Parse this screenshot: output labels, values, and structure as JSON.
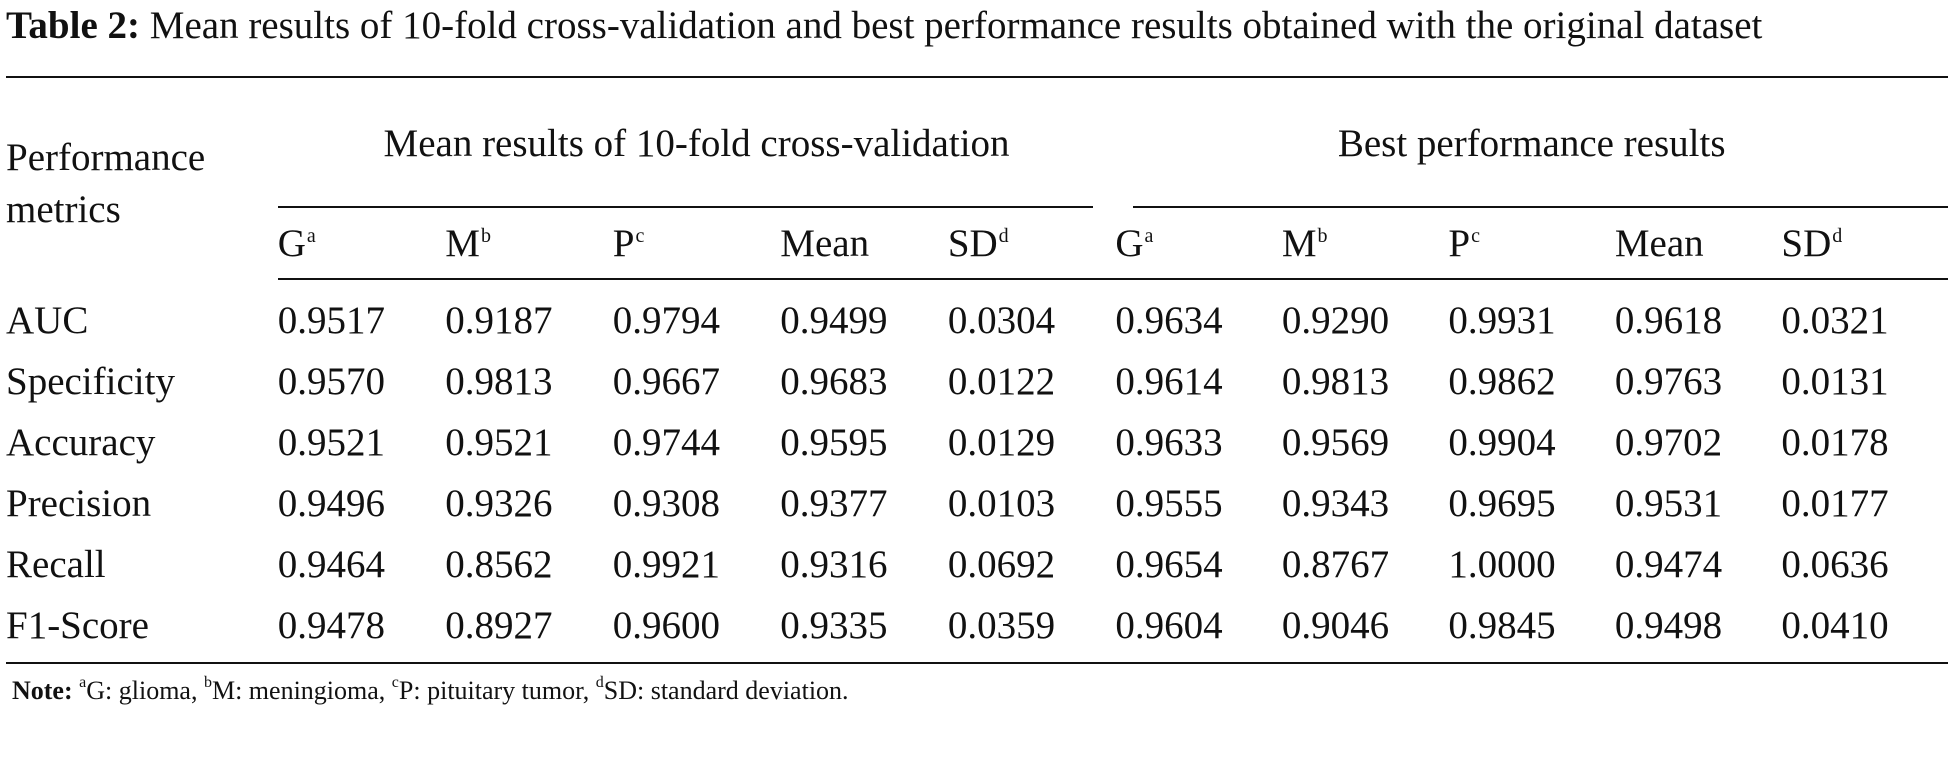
{
  "caption": {
    "label": "Table 2:",
    "text": " Mean results of 10-fold cross-validation and best performance results obtained with the original dataset"
  },
  "table": {
    "metric_header": "Performance metrics",
    "group_headers": [
      "Mean results of 10-fold cross-validation",
      "Best performance results"
    ],
    "sub_headers": [
      {
        "text": "G",
        "sup": "a"
      },
      {
        "text": "M",
        "sup": "b"
      },
      {
        "text": "P",
        "sup": "c"
      },
      {
        "text": "Mean",
        "sup": ""
      },
      {
        "text": "SD",
        "sup": "d"
      },
      {
        "text": "G",
        "sup": "a"
      },
      {
        "text": "M",
        "sup": "b"
      },
      {
        "text": "P",
        "sup": "c"
      },
      {
        "text": "Mean",
        "sup": ""
      },
      {
        "text": "SD",
        "sup": "d"
      }
    ],
    "rows": [
      {
        "metric": "AUC",
        "values": [
          "0.9517",
          "0.9187",
          "0.9794",
          "0.9499",
          "0.0304",
          "0.9634",
          "0.9290",
          "0.9931",
          "0.9618",
          "0.0321"
        ]
      },
      {
        "metric": "Specificity",
        "values": [
          "0.9570",
          "0.9813",
          "0.9667",
          "0.9683",
          "0.0122",
          "0.9614",
          "0.9813",
          "0.9862",
          "0.9763",
          "0.0131"
        ]
      },
      {
        "metric": "Accuracy",
        "values": [
          "0.9521",
          "0.9521",
          "0.9744",
          "0.9595",
          "0.0129",
          "0.9633",
          "0.9569",
          "0.9904",
          "0.9702",
          "0.0178"
        ]
      },
      {
        "metric": "Precision",
        "values": [
          "0.9496",
          "0.9326",
          "0.9308",
          "0.9377",
          "0.0103",
          "0.9555",
          "0.9343",
          "0.9695",
          "0.9531",
          "0.0177"
        ]
      },
      {
        "metric": "Recall",
        "values": [
          "0.9464",
          "0.8562",
          "0.9921",
          "0.9316",
          "0.0692",
          "0.9654",
          "0.8767",
          "1.0000",
          "0.9474",
          "0.0636"
        ]
      },
      {
        "metric": "F1-Score",
        "values": [
          "0.9478",
          "0.8927",
          "0.9600",
          "0.9335",
          "0.0359",
          "0.9604",
          "0.9046",
          "0.9845",
          "0.9498",
          "0.0410"
        ]
      }
    ]
  },
  "note": {
    "label": "Note:",
    "items": [
      {
        "sup": "a",
        "text": "G: glioma, "
      },
      {
        "sup": "b",
        "text": "M: meningioma, "
      },
      {
        "sup": "c",
        "text": "P: pituitary tumor, "
      },
      {
        "sup": "d",
        "text": "SD: standard deviation."
      }
    ]
  }
}
